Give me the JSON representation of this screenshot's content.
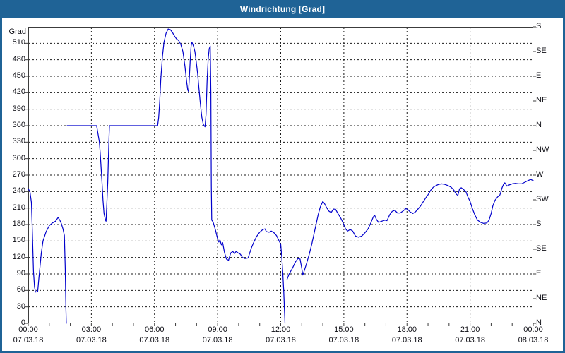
{
  "window": {
    "title": "Windrichtung [Grad]"
  },
  "colors": {
    "titlebar": "#1f6396",
    "window_border": "#1f6396",
    "plot_background": "#ffffff",
    "line": "#0000cc",
    "grid": "#1a1a1a",
    "frame": "#3c3c3c",
    "text": "#0d0d14"
  },
  "chart_data": {
    "type": "line",
    "title": "Windrichtung [Grad]",
    "ylabel_left": "Grad",
    "legend": "none",
    "grid": "dashed",
    "ylim": [
      0,
      540
    ],
    "xlim_hours": [
      0,
      24
    ],
    "y_left_ticks": [
      510,
      480,
      450,
      420,
      390,
      360,
      330,
      300,
      270,
      240,
      210,
      180,
      150,
      120,
      90,
      60,
      30,
      0
    ],
    "y_right_ticks": [
      {
        "deg": 540,
        "label": "S"
      },
      {
        "deg": 495,
        "label": "SE"
      },
      {
        "deg": 450,
        "label": "E"
      },
      {
        "deg": 405,
        "label": "NE"
      },
      {
        "deg": 360,
        "label": "N"
      },
      {
        "deg": 315,
        "label": "NW"
      },
      {
        "deg": 270,
        "label": "W"
      },
      {
        "deg": 225,
        "label": "SW"
      },
      {
        "deg": 180,
        "label": "S"
      },
      {
        "deg": 135,
        "label": "SE"
      },
      {
        "deg": 90,
        "label": "E"
      },
      {
        "deg": 45,
        "label": "NE"
      },
      {
        "deg": 0,
        "label": "N"
      }
    ],
    "x_ticks": [
      {
        "hour": 0,
        "time": "00:00",
        "date": "07.03.18"
      },
      {
        "hour": 3,
        "time": "03:00",
        "date": "07.03.18"
      },
      {
        "hour": 6,
        "time": "06:00",
        "date": "07.03.18"
      },
      {
        "hour": 9,
        "time": "09:00",
        "date": "07.03.18"
      },
      {
        "hour": 12,
        "time": "12:00",
        "date": "07.03.18"
      },
      {
        "hour": 15,
        "time": "15:00",
        "date": "07.03.18"
      },
      {
        "hour": 18,
        "time": "18:00",
        "date": "07.03.18"
      },
      {
        "hour": 21,
        "time": "21:00",
        "date": "07.03.18"
      },
      {
        "hour": 24,
        "time": "00:00",
        "date": "08.03.18"
      }
    ],
    "minor_x_tick_every_hours": 1,
    "series": [
      {
        "name": "Windrichtung",
        "unit": "Grad",
        "segments": [
          [
            [
              0,
              245
            ],
            [
              0.08,
              240
            ],
            [
              0.15,
              220
            ],
            [
              0.2,
              160
            ],
            [
              0.25,
              95
            ],
            [
              0.3,
              66
            ],
            [
              0.35,
              57
            ],
            [
              0.45,
              58
            ],
            [
              0.5,
              80
            ],
            [
              0.55,
              100
            ],
            [
              0.62,
              128
            ],
            [
              0.7,
              150
            ],
            [
              0.85,
              167
            ],
            [
              1.0,
              178
            ],
            [
              1.15,
              183
            ],
            [
              1.3,
              186
            ],
            [
              1.42,
              193
            ],
            [
              1.5,
              188
            ],
            [
              1.57,
              182
            ],
            [
              1.65,
              172
            ],
            [
              1.72,
              160
            ],
            [
              1.76,
              100
            ],
            [
              1.79,
              30
            ],
            [
              1.81,
              0
            ]
          ],
          [
            [
              1.85,
              360
            ],
            [
              3.25,
              360
            ],
            [
              3.33,
              342
            ],
            [
              3.38,
              330
            ],
            [
              3.42,
              310
            ],
            [
              3.46,
              285
            ],
            [
              3.5,
              260
            ],
            [
              3.55,
              225
            ],
            [
              3.6,
              200
            ],
            [
              3.67,
              188
            ],
            [
              3.7,
              186
            ],
            [
              3.75,
              230
            ],
            [
              3.78,
              257
            ],
            [
              3.81,
              300
            ],
            [
              3.84,
              340
            ],
            [
              3.86,
              360
            ],
            [
              6.15,
              360
            ],
            [
              6.2,
              375
            ],
            [
              6.25,
              405
            ],
            [
              6.3,
              445
            ],
            [
              6.38,
              487
            ],
            [
              6.45,
              512
            ],
            [
              6.55,
              528
            ],
            [
              6.65,
              536
            ],
            [
              6.75,
              535
            ],
            [
              6.85,
              530
            ],
            [
              6.95,
              523
            ],
            [
              7.05,
              518
            ],
            [
              7.15,
              515
            ],
            [
              7.25,
              508
            ],
            [
              7.35,
              495
            ],
            [
              7.45,
              468
            ],
            [
              7.52,
              443
            ],
            [
              7.58,
              425
            ],
            [
              7.62,
              422
            ],
            [
              7.66,
              450
            ],
            [
              7.7,
              480
            ],
            [
              7.74,
              505
            ],
            [
              7.78,
              512
            ],
            [
              7.85,
              505
            ],
            [
              7.92,
              495
            ],
            [
              7.98,
              478
            ],
            [
              8.05,
              455
            ],
            [
              8.12,
              425
            ],
            [
              8.18,
              400
            ],
            [
              8.25,
              375
            ],
            [
              8.32,
              362
            ],
            [
              8.4,
              358
            ],
            [
              8.45,
              380
            ],
            [
              8.5,
              440
            ],
            [
              8.55,
              480
            ],
            [
              8.6,
              500
            ],
            [
              8.65,
              505
            ],
            [
              8.68,
              420
            ],
            [
              8.7,
              250
            ],
            [
              8.72,
              188
            ],
            [
              8.78,
              185
            ],
            [
              8.82,
              180
            ],
            [
              8.9,
              170
            ],
            [
              9.0,
              154
            ],
            [
              9.06,
              148
            ],
            [
              9.11,
              152
            ],
            [
              9.18,
              143
            ],
            [
              9.24,
              147
            ],
            [
              9.32,
              130
            ],
            [
              9.42,
              117
            ],
            [
              9.52,
              115
            ],
            [
              9.62,
              128
            ],
            [
              9.72,
              131
            ],
            [
              9.8,
              127
            ],
            [
              9.88,
              131
            ],
            [
              9.98,
              128
            ],
            [
              10.08,
              126
            ],
            [
              10.18,
              120
            ],
            [
              10.3,
              118
            ],
            [
              10.45,
              119
            ],
            [
              10.6,
              137
            ],
            [
              10.72,
              148
            ],
            [
              10.85,
              158
            ],
            [
              11.0,
              166
            ],
            [
              11.15,
              171
            ],
            [
              11.25,
              172
            ],
            [
              11.32,
              167
            ],
            [
              11.45,
              166
            ],
            [
              11.55,
              168
            ],
            [
              11.68,
              165
            ],
            [
              11.8,
              160
            ],
            [
              11.9,
              152
            ],
            [
              12.0,
              144
            ],
            [
              12.05,
              120
            ],
            [
              12.1,
              90
            ],
            [
              12.14,
              60
            ],
            [
              12.18,
              20
            ],
            [
              12.2,
              0
            ]
          ],
          [
            [
              12.3,
              80
            ],
            [
              12.4,
              90
            ],
            [
              12.55,
              100
            ],
            [
              12.7,
              112
            ],
            [
              12.82,
              118
            ],
            [
              12.92,
              117
            ],
            [
              13.0,
              100
            ],
            [
              13.05,
              88
            ],
            [
              13.12,
              96
            ],
            [
              13.22,
              108
            ],
            [
              13.35,
              125
            ],
            [
              13.48,
              145
            ],
            [
              13.58,
              163
            ],
            [
              13.68,
              180
            ],
            [
              13.78,
              198
            ],
            [
              13.88,
              212
            ],
            [
              14.0,
              222
            ],
            [
              14.08,
              218
            ],
            [
              14.18,
              211
            ],
            [
              14.3,
              204
            ],
            [
              14.4,
              202
            ],
            [
              14.5,
              208
            ],
            [
              14.6,
              208
            ],
            [
              14.72,
              200
            ],
            [
              14.85,
              192
            ],
            [
              14.95,
              184
            ],
            [
              15.08,
              172
            ],
            [
              15.18,
              168
            ],
            [
              15.3,
              171
            ],
            [
              15.42,
              168
            ],
            [
              15.55,
              159
            ],
            [
              15.7,
              157
            ],
            [
              15.85,
              159
            ],
            [
              16.0,
              165
            ],
            [
              16.15,
              172
            ],
            [
              16.28,
              183
            ],
            [
              16.4,
              194
            ],
            [
              16.46,
              197
            ],
            [
              16.55,
              189
            ],
            [
              16.65,
              184
            ],
            [
              16.8,
              186
            ],
            [
              16.95,
              188
            ],
            [
              17.05,
              187
            ],
            [
              17.18,
              198
            ],
            [
              17.3,
              204
            ],
            [
              17.42,
              206
            ],
            [
              17.55,
              201
            ],
            [
              17.68,
              201
            ],
            [
              17.82,
              205
            ],
            [
              17.95,
              209
            ],
            [
              18.05,
              207
            ],
            [
              18.15,
              203
            ],
            [
              18.28,
              200
            ],
            [
              18.4,
              203
            ],
            [
              18.52,
              208
            ],
            [
              18.65,
              214
            ],
            [
              18.78,
              222
            ],
            [
              18.9,
              229
            ],
            [
              19.0,
              234
            ],
            [
              19.12,
              242
            ],
            [
              19.25,
              248
            ],
            [
              19.38,
              251
            ],
            [
              19.5,
              253
            ],
            [
              19.65,
              254
            ],
            [
              19.8,
              253
            ],
            [
              19.95,
              251
            ],
            [
              20.1,
              248
            ],
            [
              20.22,
              243
            ],
            [
              20.35,
              235
            ],
            [
              20.42,
              233
            ],
            [
              20.5,
              245
            ],
            [
              20.58,
              247
            ],
            [
              20.68,
              244
            ],
            [
              20.8,
              240
            ],
            [
              20.9,
              230
            ],
            [
              21.0,
              222
            ],
            [
              21.1,
              210
            ],
            [
              21.22,
              198
            ],
            [
              21.35,
              188
            ],
            [
              21.5,
              184
            ],
            [
              21.65,
              182
            ],
            [
              21.8,
              183
            ],
            [
              21.9,
              188
            ],
            [
              22.0,
              200
            ],
            [
              22.08,
              214
            ],
            [
              22.18,
              224
            ],
            [
              22.3,
              230
            ],
            [
              22.42,
              234
            ],
            [
              22.52,
              247
            ],
            [
              22.6,
              254
            ],
            [
              22.65,
              256
            ],
            [
              22.75,
              250
            ],
            [
              22.85,
              252
            ],
            [
              23.0,
              254
            ],
            [
              23.15,
              255
            ],
            [
              23.3,
              254
            ],
            [
              23.45,
              254
            ],
            [
              23.6,
              257
            ],
            [
              23.75,
              260
            ],
            [
              23.88,
              262
            ],
            [
              24.0,
              260
            ]
          ]
        ]
      }
    ]
  }
}
